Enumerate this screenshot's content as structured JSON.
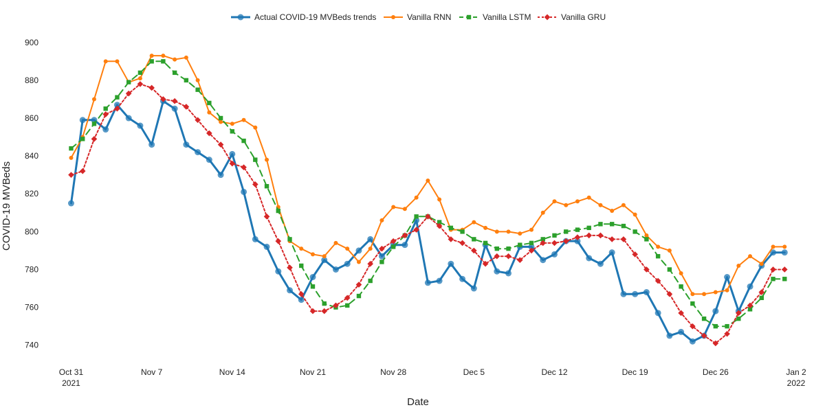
{
  "chart_data": {
    "type": "line",
    "title": "",
    "xlabel": "Date",
    "ylabel": "COVID-19 MVBeds",
    "xlim": [
      "2021-10-29",
      "2022-01-02"
    ],
    "ylim": [
      733,
      905
    ],
    "grid": false,
    "legend_position": "top-center",
    "x_ticks": [
      {
        "date": "2021-10-31",
        "lines": [
          "Oct 31",
          "2021"
        ]
      },
      {
        "date": "2021-11-07",
        "lines": [
          "Nov 7"
        ]
      },
      {
        "date": "2021-11-14",
        "lines": [
          "Nov 14"
        ]
      },
      {
        "date": "2021-11-21",
        "lines": [
          "Nov 21"
        ]
      },
      {
        "date": "2021-11-28",
        "lines": [
          "Nov 28"
        ]
      },
      {
        "date": "2021-12-05",
        "lines": [
          "Dec 5"
        ]
      },
      {
        "date": "2021-12-12",
        "lines": [
          "Dec 12"
        ]
      },
      {
        "date": "2021-12-19",
        "lines": [
          "Dec 19"
        ]
      },
      {
        "date": "2021-12-26",
        "lines": [
          "Dec 26"
        ]
      },
      {
        "date": "2022-01-02",
        "lines": [
          "Jan 2",
          "2022"
        ]
      }
    ],
    "y_ticks": [
      740,
      760,
      780,
      800,
      820,
      840,
      860,
      880,
      900
    ],
    "x": [
      "2021-10-31",
      "2021-11-01",
      "2021-11-02",
      "2021-11-03",
      "2021-11-04",
      "2021-11-05",
      "2021-11-06",
      "2021-11-07",
      "2021-11-08",
      "2021-11-09",
      "2021-11-10",
      "2021-11-11",
      "2021-11-12",
      "2021-11-13",
      "2021-11-14",
      "2021-11-15",
      "2021-11-16",
      "2021-11-17",
      "2021-11-18",
      "2021-11-19",
      "2021-11-20",
      "2021-11-21",
      "2021-11-22",
      "2021-11-23",
      "2021-11-24",
      "2021-11-25",
      "2021-11-26",
      "2021-11-27",
      "2021-11-28",
      "2021-11-29",
      "2021-11-30",
      "2021-12-01",
      "2021-12-02",
      "2021-12-03",
      "2021-12-04",
      "2021-12-05",
      "2021-12-06",
      "2021-12-07",
      "2021-12-08",
      "2021-12-09",
      "2021-12-10",
      "2021-12-11",
      "2021-12-12",
      "2021-12-13",
      "2021-12-14",
      "2021-12-15",
      "2021-12-16",
      "2021-12-17",
      "2021-12-18",
      "2021-12-19",
      "2021-12-20",
      "2021-12-21",
      "2021-12-22",
      "2021-12-23",
      "2021-12-24",
      "2021-12-25",
      "2021-12-26",
      "2021-12-27",
      "2021-12-28",
      "2021-12-29",
      "2021-12-30",
      "2021-12-31",
      "2022-01-01"
    ],
    "series": [
      {
        "name": "Actual COVID-19 MVBeds trends",
        "color": "#1f77b4",
        "style": "solid-thick",
        "marker": "circle",
        "values": [
          815,
          859,
          859,
          854,
          867,
          860,
          856,
          846,
          869,
          865,
          846,
          842,
          838,
          830,
          841,
          821,
          796,
          792,
          779,
          769,
          764,
          776,
          785,
          780,
          783,
          790,
          796,
          787,
          793,
          793,
          806,
          773,
          774,
          783,
          775,
          770,
          793,
          779,
          778,
          792,
          792,
          785,
          788,
          795,
          795,
          786,
          783,
          789,
          767,
          767,
          768,
          757,
          745,
          747,
          742,
          745,
          758,
          776,
          758,
          771,
          782,
          789,
          789
        ]
      },
      {
        "name": "Vanilla RNN",
        "color": "#ff7f0e",
        "style": "solid",
        "marker": "circle",
        "values": [
          839,
          850,
          870,
          890,
          890,
          879,
          881,
          893,
          893,
          891,
          892,
          880,
          863,
          858,
          857,
          859,
          855,
          838,
          813,
          795,
          791,
          788,
          787,
          794,
          791,
          784,
          791,
          806,
          813,
          812,
          818,
          827,
          817,
          801,
          801,
          805,
          802,
          800,
          800,
          799,
          801,
          810,
          816,
          814,
          816,
          818,
          814,
          811,
          814,
          809,
          798,
          792,
          790,
          778,
          767,
          767,
          768,
          769,
          782,
          787,
          783,
          792,
          792
        ]
      },
      {
        "name": "Vanilla LSTM",
        "color": "#2ca02c",
        "style": "dashed",
        "marker": "square",
        "values": [
          844,
          849,
          857,
          865,
          871,
          879,
          884,
          890,
          890,
          884,
          880,
          875,
          868,
          860,
          853,
          848,
          838,
          824,
          811,
          796,
          782,
          771,
          762,
          760,
          761,
          766,
          774,
          784,
          792,
          798,
          808,
          808,
          805,
          802,
          800,
          796,
          794,
          791,
          791,
          793,
          794,
          796,
          798,
          800,
          801,
          802,
          804,
          804,
          803,
          800,
          796,
          787,
          780,
          771,
          762,
          754,
          750,
          750,
          754,
          759,
          765,
          775,
          775
        ]
      },
      {
        "name": "Vanilla GRU",
        "color": "#d62728",
        "style": "dotted",
        "marker": "diamond",
        "values": [
          830,
          832,
          849,
          862,
          865,
          873,
          878,
          876,
          870,
          869,
          866,
          859,
          852,
          846,
          836,
          834,
          825,
          808,
          795,
          781,
          767,
          758,
          758,
          761,
          765,
          772,
          783,
          791,
          795,
          798,
          801,
          808,
          803,
          796,
          794,
          790,
          783,
          787,
          787,
          785,
          790,
          794,
          794,
          795,
          797,
          798,
          798,
          796,
          796,
          788,
          780,
          774,
          767,
          757,
          750,
          745,
          741,
          746,
          757,
          761,
          768,
          780,
          780
        ]
      }
    ]
  }
}
